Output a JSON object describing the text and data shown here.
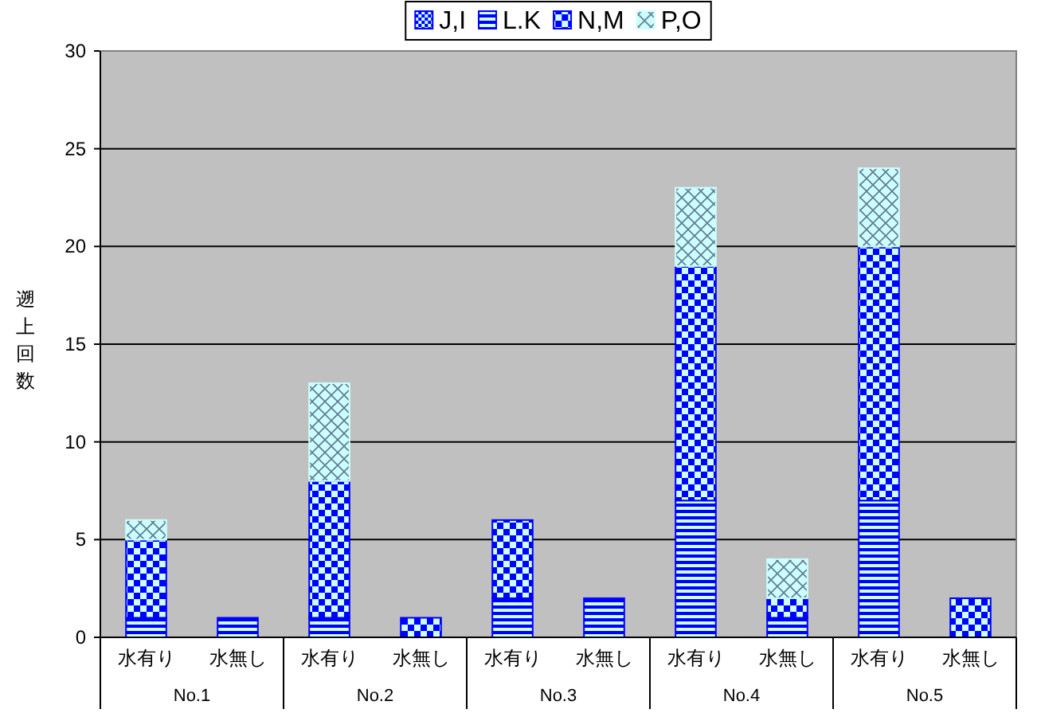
{
  "chart_data": {
    "type": "bar",
    "stacked": true,
    "categories": [
      "水有り",
      "水無し",
      "水有り",
      "水無し",
      "水有り",
      "水無し",
      "水有り",
      "水無し",
      "水有り",
      "水無し"
    ],
    "series": [
      {
        "name": "J,I",
        "color": "#0000ff",
        "values": [
          0,
          0,
          0,
          0,
          0,
          0,
          0,
          0,
          0,
          0
        ]
      },
      {
        "name": "L.K",
        "color": "#0000ff",
        "values": [
          1,
          1,
          1,
          0,
          2,
          2,
          7,
          1,
          7,
          0
        ]
      },
      {
        "name": "N,M",
        "color": "#0000ff",
        "values": [
          4,
          0,
          7,
          1,
          4,
          0,
          12,
          1,
          13,
          2
        ]
      },
      {
        "name": "P,O",
        "color": "#ccffff",
        "values": [
          1,
          0,
          5,
          0,
          0,
          0,
          4,
          2,
          4,
          0
        ]
      }
    ],
    "annotations": [
      "No.1",
      "No.2",
      "No.3",
      "No.4",
      "No.5"
    ],
    "ylabel": "遡上回数",
    "ylim": [
      0,
      30
    ],
    "yticks": [
      0,
      5,
      10,
      15,
      20,
      25,
      30
    ],
    "grid": "y",
    "legend": "top"
  }
}
